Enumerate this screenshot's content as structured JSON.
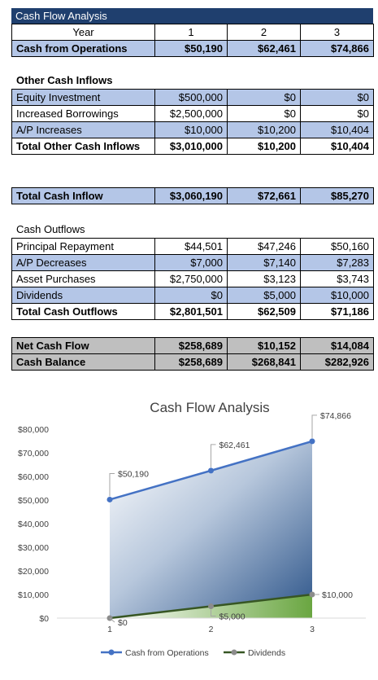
{
  "table": {
    "title": "Cash Flow Analysis",
    "header": [
      "Year",
      "1",
      "2",
      "3"
    ],
    "cash_from_operations": {
      "label": "Cash from Operations",
      "values": [
        "$50,190",
        "$62,461",
        "$74,866"
      ]
    },
    "other_inflows_heading": "Other Cash Inflows",
    "other_inflows": [
      {
        "label": "Equity Investment",
        "values": [
          "$500,000",
          "$0",
          "$0"
        ]
      },
      {
        "label": "Increased Borrowings",
        "values": [
          "$2,500,000",
          "$0",
          "$0"
        ]
      },
      {
        "label": "A/P Increases",
        "values": [
          "$10,000",
          "$10,200",
          "$10,404"
        ]
      }
    ],
    "total_other_inflows": {
      "label": "Total Other Cash Inflows",
      "values": [
        "$3,010,000",
        "$10,200",
        "$10,404"
      ]
    },
    "total_cash_inflow": {
      "label": "Total Cash Inflow",
      "values": [
        "$3,060,190",
        "$72,661",
        "$85,270"
      ]
    },
    "outflows_heading": "Cash Outflows",
    "outflows": [
      {
        "label": "Principal Repayment",
        "values": [
          "$44,501",
          "$47,246",
          "$50,160"
        ]
      },
      {
        "label": "A/P Decreases",
        "values": [
          "$7,000",
          "$7,140",
          "$7,283"
        ]
      },
      {
        "label": "Asset Purchases",
        "values": [
          "$2,750,000",
          "$3,123",
          "$3,743"
        ]
      },
      {
        "label": "Dividends",
        "values": [
          "$0",
          "$5,000",
          "$10,000"
        ]
      }
    ],
    "total_outflows": {
      "label": "Total Cash Outflows",
      "values": [
        "$2,801,501",
        "$62,509",
        "$71,186"
      ]
    },
    "net_cash_flow": {
      "label": "Net Cash Flow",
      "values": [
        "$258,689",
        "$10,152",
        "$14,084"
      ]
    },
    "cash_balance": {
      "label": "Cash Balance",
      "values": [
        "$258,689",
        "$268,841",
        "$282,926"
      ]
    }
  },
  "colors": {
    "header_blue": "#1f3f6e",
    "row_blue": "#b4c6e7",
    "row_gray": "#bfbfbf",
    "series_ops": "#4472c4",
    "series_div": "#375623"
  },
  "chart_data": {
    "type": "area",
    "title": "Cash Flow Analysis",
    "categories": [
      "1",
      "2",
      "3"
    ],
    "ylim": [
      0,
      80000
    ],
    "yticks": [
      "$0",
      "$10,000",
      "$20,000",
      "$30,000",
      "$40,000",
      "$50,000",
      "$60,000",
      "$70,000",
      "$80,000"
    ],
    "series": [
      {
        "name": "Cash from Operations",
        "values": [
          50190,
          62461,
          74866
        ],
        "labels": [
          "$50,190",
          "$62,461",
          "$74,866"
        ]
      },
      {
        "name": "Dividends",
        "values": [
          0,
          5000,
          10000
        ],
        "labels": [
          "$0",
          "$5,000",
          "$10,000"
        ]
      }
    ],
    "legend": "bottom",
    "grid": false
  }
}
